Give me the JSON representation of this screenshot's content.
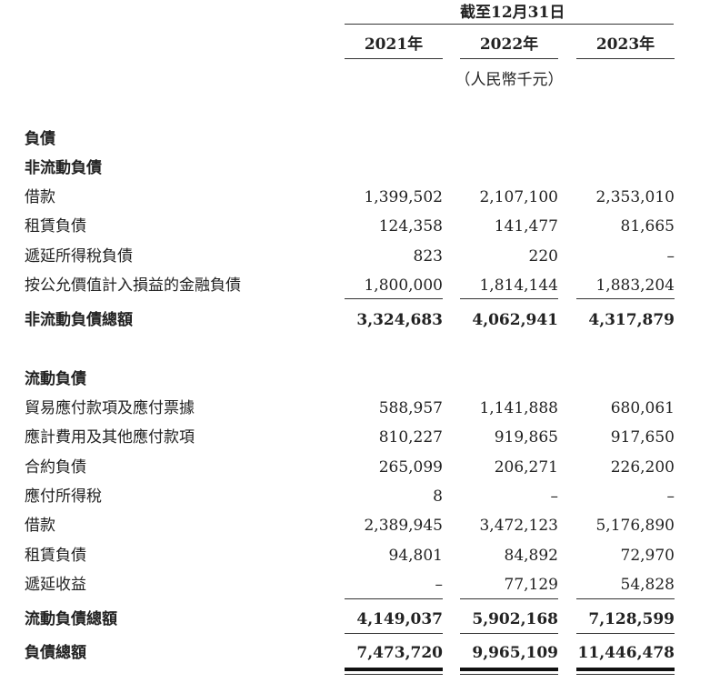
{
  "header": {
    "period": "截至12月31日",
    "years": [
      "2021年",
      "2022年",
      "2023年"
    ],
    "unit": "（人民幣千元）"
  },
  "section": "負債",
  "non_current": {
    "title": "非流動負債",
    "rows": [
      {
        "label": "借款",
        "values": [
          "1,399,502",
          "2,107,100",
          "2,353,010"
        ]
      },
      {
        "label": "租賃負債",
        "values": [
          "124,358",
          "141,477",
          "81,665"
        ]
      },
      {
        "label": "遞延所得稅負債",
        "values": [
          "823",
          "220",
          "–"
        ]
      },
      {
        "label": "按公允價值計入損益的金融負債",
        "values": [
          "1,800,000",
          "1,814,144",
          "1,883,204"
        ]
      }
    ],
    "total": {
      "label": "非流動負債總額",
      "values": [
        "3,324,683",
        "4,062,941",
        "4,317,879"
      ]
    }
  },
  "current": {
    "title": "流動負債",
    "rows": [
      {
        "label": "貿易應付款項及應付票據",
        "values": [
          "588,957",
          "1,141,888",
          "680,061"
        ]
      },
      {
        "label": "應計費用及其他應付款項",
        "values": [
          "810,227",
          "919,865",
          "917,650"
        ]
      },
      {
        "label": "合約負債",
        "values": [
          "265,099",
          "206,271",
          "226,200"
        ]
      },
      {
        "label": "應付所得稅",
        "values": [
          "8",
          "–",
          "–"
        ]
      },
      {
        "label": "借款",
        "values": [
          "2,389,945",
          "3,472,123",
          "5,176,890"
        ]
      },
      {
        "label": "租賃負債",
        "values": [
          "94,801",
          "84,892",
          "72,970"
        ]
      },
      {
        "label": "遞延收益",
        "values": [
          "–",
          "77,129",
          "54,828"
        ]
      }
    ],
    "total": {
      "label": "流動負債總額",
      "values": [
        "4,149,037",
        "5,902,168",
        "7,128,599"
      ]
    }
  },
  "grand_total": {
    "label": "負債總額",
    "values": [
      "7,473,720",
      "9,965,109",
      "11,446,478"
    ]
  }
}
